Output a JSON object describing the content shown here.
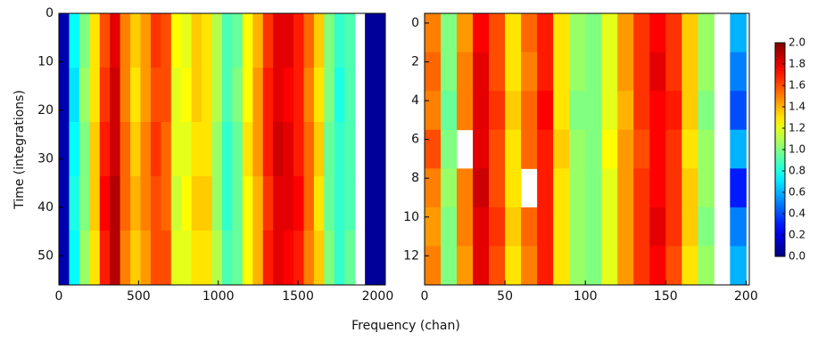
{
  "chart_data": {
    "type": "heatmap",
    "xlabel": "Frequency (chan)",
    "ylabel": "Time (integrations)",
    "clim": [
      0,
      2
    ],
    "colorbar_ticks": [
      {
        "value": 0,
        "label": "0.0"
      },
      0.2,
      0.4,
      0.6,
      0.8,
      {
        "value": 1,
        "label": "1.0"
      },
      1.2,
      1.4,
      1.6,
      1.8,
      {
        "value": 2,
        "label": "2.0"
      }
    ],
    "panels": [
      {
        "xlim": [
          0,
          2048
        ],
        "ylim": [
          0,
          56
        ],
        "xticks": [
          0,
          500,
          1000,
          1500,
          2000
        ],
        "yticks": [
          0,
          10,
          20,
          30,
          40,
          50
        ],
        "xbins": [
          0,
          64,
          128,
          192,
          256,
          320,
          384,
          448,
          512,
          576,
          640,
          704,
          768,
          832,
          896,
          960,
          1024,
          1088,
          1152,
          1216,
          1280,
          1344,
          1408,
          1472,
          1536,
          1600,
          1664,
          1728,
          1792,
          1856,
          1920,
          1984,
          2048
        ],
        "ybins": [
          0,
          11.2,
          22.4,
          33.6,
          44.8,
          56
        ],
        "z": [
          [
            0.1,
            0.75,
            1.0,
            1.3,
            1.6,
            1.8,
            1.5,
            1.35,
            1.45,
            1.65,
            1.6,
            1.25,
            1.2,
            1.35,
            1.3,
            1.1,
            0.9,
            0.95,
            1.25,
            1.4,
            1.65,
            1.8,
            1.8,
            1.7,
            1.55,
            1.35,
            1.0,
            0.85,
            0.9,
            null,
            0.05,
            0.05
          ],
          [
            0.1,
            0.7,
            1.05,
            1.3,
            1.65,
            1.85,
            1.5,
            1.3,
            1.45,
            1.6,
            1.6,
            1.2,
            1.25,
            1.35,
            1.3,
            1.1,
            0.9,
            1.0,
            1.25,
            1.45,
            1.7,
            1.8,
            1.75,
            1.7,
            1.5,
            1.3,
            1.0,
            0.8,
            0.9,
            null,
            0.05,
            0.05
          ],
          [
            0.1,
            0.75,
            1.0,
            1.35,
            1.7,
            1.85,
            1.55,
            1.35,
            1.5,
            1.65,
            1.55,
            1.2,
            1.2,
            1.3,
            1.3,
            1.05,
            0.85,
            0.95,
            1.3,
            1.45,
            1.7,
            1.85,
            1.8,
            1.7,
            1.55,
            1.35,
            0.95,
            0.85,
            0.9,
            null,
            0.05,
            0.05
          ],
          [
            0.1,
            0.8,
            1.0,
            1.35,
            1.75,
            1.9,
            1.55,
            1.4,
            1.5,
            1.6,
            1.55,
            1.15,
            1.25,
            1.35,
            1.35,
            1.05,
            0.85,
            0.95,
            1.25,
            1.4,
            1.65,
            1.8,
            1.8,
            1.75,
            1.55,
            1.3,
            0.95,
            0.85,
            0.9,
            null,
            0.05,
            0.05
          ],
          [
            0.1,
            0.75,
            1.05,
            1.3,
            1.7,
            1.9,
            1.5,
            1.35,
            1.45,
            1.6,
            1.6,
            1.2,
            1.2,
            1.3,
            1.3,
            1.1,
            0.9,
            0.95,
            1.25,
            1.4,
            1.7,
            1.8,
            1.75,
            1.7,
            1.5,
            1.35,
            1.0,
            0.85,
            0.95,
            null,
            0.05,
            0.05
          ]
        ]
      },
      {
        "xlim": [
          0,
          202
        ],
        "ylim": [
          -0.5,
          13.5
        ],
        "xticks": [
          0,
          50,
          100,
          150,
          200
        ],
        "yticks": [
          0,
          2,
          4,
          6,
          8,
          10,
          12
        ],
        "xbins": [
          0,
          10,
          20,
          30,
          40,
          50,
          60,
          70,
          80,
          90,
          100,
          110,
          120,
          130,
          140,
          150,
          160,
          170,
          180,
          190,
          200
        ],
        "ybins": [
          -0.5,
          1.5,
          3.5,
          5.5,
          7.5,
          9.5,
          11.5,
          13.5
        ],
        "z": [
          [
            1.5,
            1.0,
            1.45,
            1.75,
            1.6,
            1.3,
            1.55,
            1.7,
            1.3,
            1.05,
            1.0,
            1.2,
            1.45,
            1.65,
            1.75,
            1.65,
            1.35,
            1.05,
            null,
            0.6
          ],
          [
            1.55,
            1.0,
            1.5,
            1.8,
            1.6,
            1.3,
            1.5,
            1.7,
            1.3,
            1.05,
            1.0,
            1.2,
            1.45,
            1.65,
            1.8,
            1.65,
            1.35,
            1.05,
            null,
            0.5
          ],
          [
            1.5,
            0.95,
            1.5,
            1.8,
            1.65,
            1.35,
            1.55,
            1.75,
            1.3,
            1.0,
            1.0,
            1.2,
            1.4,
            1.65,
            1.75,
            1.7,
            1.35,
            1.0,
            null,
            0.4
          ],
          [
            1.6,
            1.0,
            null,
            1.8,
            1.6,
            1.3,
            1.55,
            1.7,
            1.35,
            1.05,
            1.0,
            1.25,
            1.45,
            1.6,
            1.75,
            1.65,
            1.3,
            1.05,
            null,
            0.6
          ],
          [
            1.5,
            1.05,
            1.5,
            1.85,
            1.6,
            1.3,
            null,
            1.7,
            1.3,
            1.05,
            1.0,
            1.2,
            1.45,
            1.65,
            1.75,
            1.65,
            1.35,
            1.05,
            null,
            0.3
          ],
          [
            1.45,
            1.0,
            1.5,
            1.8,
            1.65,
            1.35,
            1.55,
            1.7,
            1.3,
            1.05,
            1.0,
            1.2,
            1.45,
            1.65,
            1.8,
            1.65,
            1.35,
            1.0,
            null,
            0.5
          ],
          [
            1.5,
            1.0,
            1.45,
            1.8,
            1.6,
            1.3,
            1.5,
            1.7,
            1.3,
            1.05,
            1.0,
            1.2,
            1.45,
            1.65,
            1.75,
            1.6,
            1.3,
            1.05,
            null,
            0.6
          ]
        ]
      }
    ]
  }
}
